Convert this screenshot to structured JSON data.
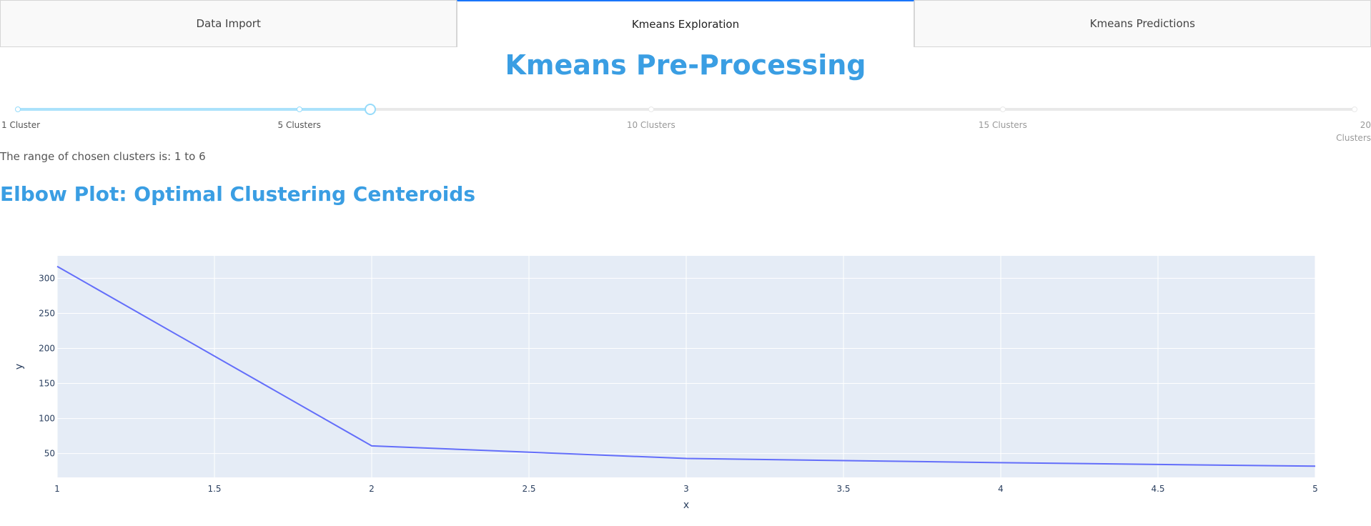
{
  "tabs": [
    {
      "label": "Data Import",
      "selected": false
    },
    {
      "label": "Kmeans Exploration",
      "selected": true
    },
    {
      "label": "Kmeans Predictions",
      "selected": false
    }
  ],
  "page_title": "Kmeans Pre-Processing",
  "slider": {
    "min": 1,
    "max": 20,
    "value": [
      1,
      6
    ],
    "marks": [
      {
        "value": 1,
        "label": "1 Cluster"
      },
      {
        "value": 5,
        "label": "5 Clusters"
      },
      {
        "value": 10,
        "label": "10 Clusters"
      },
      {
        "value": 15,
        "label": "15 Clusters"
      },
      {
        "value": 20,
        "label": "20 Clusters"
      }
    ]
  },
  "range_text": "The range of chosen clusters is: 1 to 6",
  "section_title": "Elbow Plot: Optimal Clustering Centeroids",
  "chart_data": {
    "type": "line",
    "x": [
      1,
      2,
      3,
      4,
      5
    ],
    "series": [
      {
        "values": [
          317,
          61,
          43,
          37,
          32
        ]
      }
    ],
    "xlabel": "x",
    "ylabel": "y",
    "xlim": [
      1,
      5
    ],
    "ylim": [
      16,
      332
    ],
    "xticks": [
      1,
      1.5,
      2,
      2.5,
      3,
      3.5,
      4,
      4.5,
      5
    ],
    "yticks": [
      50,
      100,
      150,
      200,
      250,
      300
    ],
    "grid": true,
    "colors": {
      "line": "#636efa",
      "plot_bg": "#e5ecf6",
      "grid": "#ffffff",
      "tick": "#2a3f5f"
    }
  }
}
